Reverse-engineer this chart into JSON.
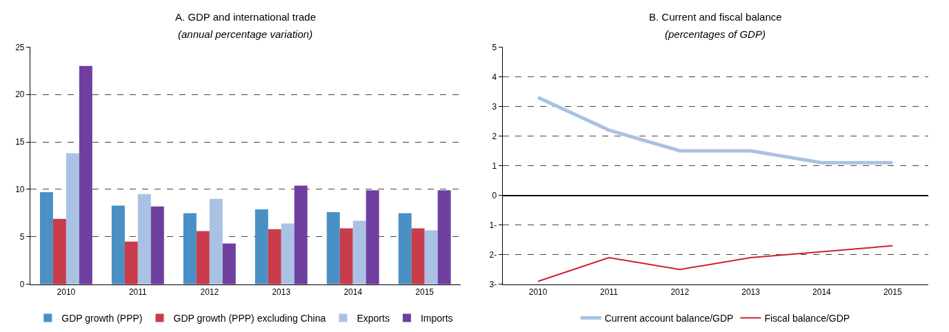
{
  "chart_data": [
    {
      "type": "bar",
      "title": "A. GDP and international trade",
      "subtitle": "(annual percentage variation)",
      "categories": [
        "2010",
        "2011",
        "2012",
        "2013",
        "2014",
        "2015"
      ],
      "series": [
        {
          "name": "GDP growth (PPP)",
          "color": "#4a90c4",
          "values": [
            9.7,
            8.3,
            7.5,
            7.9,
            7.6,
            7.5
          ]
        },
        {
          "name": "GDP growth (PPP) excluding China",
          "color": "#c83c4b",
          "values": [
            6.9,
            4.5,
            5.6,
            5.8,
            5.9,
            5.9
          ]
        },
        {
          "name": "Exports",
          "color": "#a9c2e4",
          "values": [
            13.8,
            9.5,
            9.0,
            6.4,
            6.7,
            5.7
          ]
        },
        {
          "name": "Imports",
          "color": "#6f3fa0",
          "values": [
            23.0,
            8.2,
            4.3,
            10.4,
            9.9,
            9.9
          ]
        }
      ],
      "ylim": [
        0,
        25
      ],
      "yticks": [
        0,
        5,
        10,
        15,
        20,
        25
      ],
      "grid": "y",
      "legend": "bottom"
    },
    {
      "type": "line",
      "title": "B. Current and fiscal balance",
      "subtitle": "(percentages of GDP)",
      "categories": [
        "2010",
        "2011",
        "2012",
        "2013",
        "2014",
        "2015"
      ],
      "series": [
        {
          "name": "Current account balance/GDP",
          "color": "#a9c2e0",
          "values": [
            3.3,
            2.2,
            1.5,
            1.5,
            1.1,
            1.1
          ]
        },
        {
          "name": "Fiscal balance/GDP",
          "color": "#d0202e",
          "values": [
            -2.9,
            -2.1,
            -2.5,
            -2.1,
            -1.9,
            -1.7
          ]
        }
      ],
      "ylim": [
        -3,
        5
      ],
      "yticks": [
        {
          "value": -3,
          "label": "3-"
        },
        {
          "value": -2,
          "label": "2-"
        },
        {
          "value": -1,
          "label": "1-"
        },
        0,
        1,
        2,
        3,
        4,
        5
      ],
      "grid": "y",
      "legend": "bottom",
      "marker": "none",
      "line_style": "solid"
    }
  ]
}
